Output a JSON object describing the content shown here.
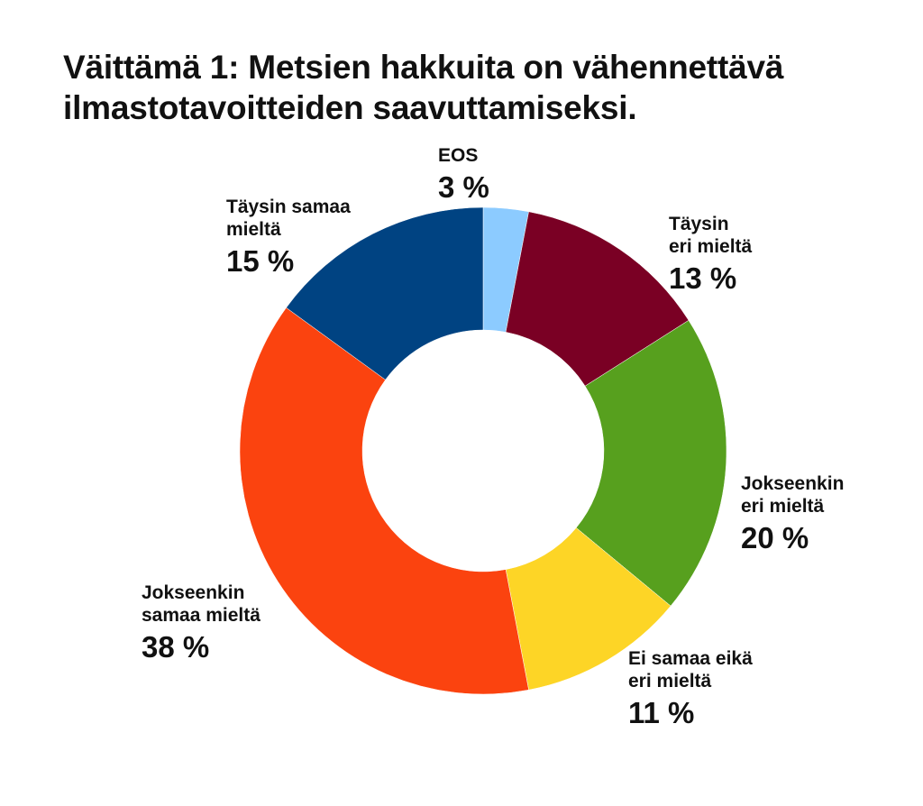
{
  "chart_data": {
    "type": "pie",
    "donut": true,
    "title_lines": [
      "Väittämä 1: Metsien hakkuita on vähennettävä",
      "ilmastotavoitteiden saavuttamiseksi."
    ],
    "slices": [
      {
        "label": "EOS",
        "value": 3,
        "value_label": "3 %",
        "color": "#8ccbff"
      },
      {
        "label": "Täysin\neri mieltä",
        "value": 13,
        "value_label": "13 %",
        "color": "#7a0024"
      },
      {
        "label": "Jokseenkin\neri mieltä",
        "value": 20,
        "value_label": "20 %",
        "color": "#57a01e"
      },
      {
        "label": "Ei samaa eikä\neri mieltä",
        "value": 11,
        "value_label": "11 %",
        "color": "#fdd526"
      },
      {
        "label": "Jokseenkin\nsamaa mieltä",
        "value": 38,
        "value_label": "38 %",
        "color": "#fb430f"
      },
      {
        "label": "Täysin samaa\nmieltä",
        "value": 15,
        "value_label": "15 %",
        "color": "#004382"
      }
    ],
    "legend": "none"
  }
}
